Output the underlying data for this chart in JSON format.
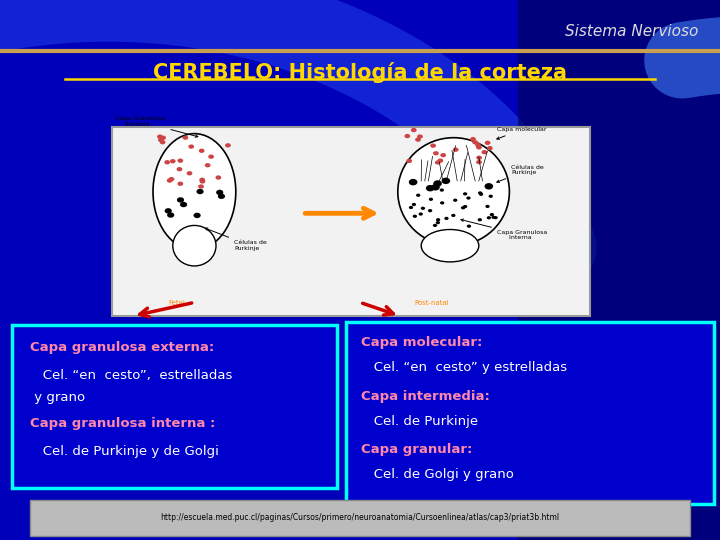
{
  "bg_color": "#0000BB",
  "title_text": "CEREBELO: Histología de la corteza",
  "title_color": "#FFD700",
  "header_text": "Sistema Nervioso",
  "header_color": "#DDDDDD",
  "line_color": "#C8A050",
  "left_box_bg": "#0000CC",
  "right_box_bg": "#0000CC",
  "box_border_color": "#00FFFF",
  "left_box_lines": [
    {
      "text": "Capa granulosa externa:",
      "color": "#FF88AA",
      "bold": true
    },
    {
      "text": "   Cel. “en  cesto”,  estrelladas",
      "color": "#FFFFFF",
      "bold": false
    },
    {
      "text": " y grano",
      "color": "#FFFFFF",
      "bold": false
    },
    {
      "text": "Capa granulosa interna :",
      "color": "#FF88AA",
      "bold": true
    },
    {
      "text": "   Cel. de Purkinje y de Golgi",
      "color": "#FFFFFF",
      "bold": false
    }
  ],
  "right_box_lines": [
    {
      "text": "Capa molecular:",
      "color": "#FF88AA",
      "bold": true
    },
    {
      "text": "   Cel. “en  cesto” y estrelladas",
      "color": "#FFFFFF",
      "bold": false
    },
    {
      "text": "Capa intermedia:",
      "color": "#FF88AA",
      "bold": true
    },
    {
      "text": "   Cel. de Purkinje",
      "color": "#FFFFFF",
      "bold": false
    },
    {
      "text": "Capa granular:",
      "color": "#FF88AA",
      "bold": true
    },
    {
      "text": "   Cel. de Golgi y grano",
      "color": "#FFFFFF",
      "bold": false
    }
  ],
  "footer_text": "http://escuela.med.puc.cl/paginas/Cursos/primero/neuroanatomia/Cursoenlinea/atlas/cap3/priat3b.html",
  "footer_color": "#000000",
  "footer_bg": "#BBBBBB",
  "arrow_color": "#CC0000"
}
